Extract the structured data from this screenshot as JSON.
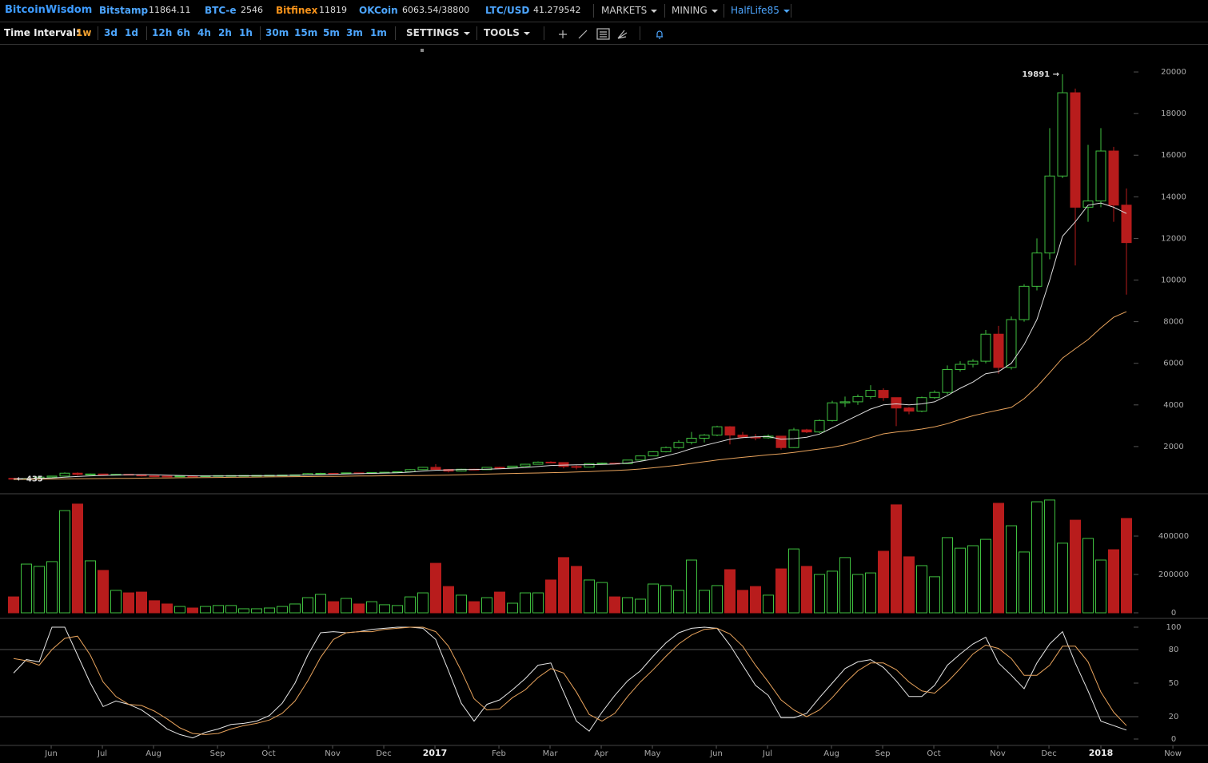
{
  "header": {
    "brand": "BitcoinWisdom",
    "tickers": [
      {
        "name": "Bitstamp",
        "price": "11864.11",
        "color": "#4da6ff"
      },
      {
        "name": "BTC-e",
        "price": "2546",
        "color": "#4da6ff"
      },
      {
        "name": "Bitfinex",
        "price": "11819",
        "color": "#f7931a"
      },
      {
        "name": "OKCoin",
        "price": "6063.54/38800",
        "color": "#4da6ff"
      },
      {
        "name": "LTC/USD",
        "price": "41.279542",
        "color": "#4da6ff"
      }
    ],
    "menus": [
      "MARKETS",
      "MINING",
      "HalfLife85"
    ]
  },
  "toolbar": {
    "label": "Time Interval:",
    "intervals": [
      "1w",
      "3d",
      "1d",
      "12h",
      "6h",
      "4h",
      "2h",
      "1h",
      "30m",
      "15m",
      "5m",
      "3m",
      "1m"
    ],
    "active": 0,
    "menus": [
      "SETTINGS",
      "TOOLS"
    ]
  },
  "chart_data": [
    {
      "type": "candlestick",
      "up_color": "#3fbf3f",
      "down_color": "#b81c1c",
      "xlim": [
        -1.0625,
        93.3125
      ],
      "ylim": [
        0,
        21000
      ],
      "yticks": [
        2000,
        4000,
        6000,
        8000,
        10000,
        12000,
        14000,
        16000,
        18000,
        20000
      ],
      "high_label": "19891 →",
      "low_label": "← 435",
      "open": [
        470,
        450,
        460,
        530,
        580,
        720,
        660,
        680,
        650,
        665,
        650,
        590,
        580,
        570,
        585,
        575,
        595,
        605,
        608,
        612,
        616,
        622,
        630,
        640,
        700,
        712,
        705,
        735,
        725,
        750,
        765,
        790,
        890,
        1000,
        900,
        820,
        910,
        890,
        1000,
        990,
        1060,
        1150,
        1250,
        1230,
        1040,
        1010,
        1180,
        1200,
        1180,
        1350,
        1550,
        1750,
        1950,
        2200,
        2400,
        2550,
        2950,
        2550,
        2450,
        2420,
        2500,
        1950,
        2800,
        2700,
        3250,
        4100,
        4150,
        4400,
        4700,
        4350,
        3850,
        3700,
        4350,
        4600,
        5700,
        5950,
        6100,
        7400,
        5800,
        8100,
        9700,
        11300,
        15000,
        19000,
        13500,
        13800,
        16200,
        13600
      ],
      "high": [
        480,
        470,
        540,
        590,
        760,
        760,
        700,
        690,
        680,
        670,
        660,
        600,
        590,
        595,
        590,
        600,
        612,
        615,
        620,
        625,
        630,
        640,
        650,
        720,
        740,
        720,
        750,
        745,
        760,
        780,
        800,
        910,
        1020,
        1150,
        920,
        930,
        930,
        1010,
        1030,
        1070,
        1170,
        1280,
        1290,
        1250,
        1100,
        1200,
        1230,
        1220,
        1360,
        1570,
        1780,
        2000,
        2300,
        2700,
        2600,
        3000,
        2980,
        2700,
        2600,
        2580,
        2500,
        2900,
        2850,
        3300,
        4200,
        4400,
        4500,
        4950,
        4800,
        4350,
        3900,
        4400,
        4700,
        5900,
        6100,
        6200,
        7600,
        7800,
        8250,
        9800,
        12000,
        17300,
        19891,
        19200,
        16500,
        17300,
        16400,
        14400
      ],
      "low": [
        435,
        440,
        455,
        520,
        570,
        600,
        640,
        630,
        640,
        620,
        560,
        570,
        560,
        565,
        565,
        570,
        590,
        600,
        605,
        608,
        610,
        618,
        625,
        635,
        690,
        690,
        700,
        710,
        720,
        745,
        760,
        785,
        880,
        860,
        760,
        800,
        870,
        880,
        960,
        980,
        1050,
        1140,
        1200,
        950,
        900,
        1000,
        1150,
        1150,
        1170,
        1340,
        1540,
        1720,
        1900,
        2100,
        2200,
        2500,
        2100,
        2400,
        2300,
        2380,
        1850,
        1930,
        2650,
        2650,
        3200,
        3900,
        4000,
        4300,
        4200,
        2980,
        3550,
        3650,
        4300,
        4500,
        5600,
        5800,
        6000,
        5500,
        5700,
        8000,
        9500,
        11000,
        14900,
        10700,
        12800,
        13500,
        12800,
        9300
      ],
      "close": [
        450,
        460,
        530,
        580,
        720,
        660,
        680,
        650,
        665,
        650,
        590,
        580,
        570,
        585,
        575,
        595,
        605,
        608,
        612,
        616,
        622,
        630,
        640,
        700,
        712,
        705,
        735,
        725,
        750,
        765,
        790,
        890,
        1000,
        900,
        820,
        910,
        890,
        1000,
        990,
        1060,
        1150,
        1250,
        1230,
        1040,
        1010,
        1180,
        1200,
        1180,
        1350,
        1550,
        1750,
        1950,
        2200,
        2400,
        2550,
        2950,
        2550,
        2450,
        2420,
        2500,
        1950,
        2800,
        2700,
        3250,
        4100,
        4150,
        4400,
        4700,
        4350,
        3850,
        3700,
        4350,
        4600,
        5700,
        5950,
        6100,
        7400,
        5800,
        8100,
        9700,
        11300,
        15000,
        19000,
        13500,
        13800,
        16200,
        13600,
        11800
      ],
      "ma_series": [
        {
          "color": "#dcdcdc",
          "values": [
            450,
            452,
            470,
            490,
            530,
            560,
            590,
            610,
            630,
            650,
            650,
            640,
            625,
            610,
            595,
            585,
            585,
            590,
            595,
            600,
            605,
            612,
            620,
            635,
            650,
            665,
            680,
            695,
            710,
            725,
            740,
            770,
            820,
            860,
            880,
            890,
            900,
            910,
            930,
            960,
            990,
            1040,
            1090,
            1110,
            1120,
            1130,
            1140,
            1160,
            1210,
            1290,
            1400,
            1550,
            1700,
            1900,
            2050,
            2200,
            2350,
            2430,
            2470,
            2480,
            2350,
            2380,
            2450,
            2600,
            2900,
            3200,
            3500,
            3800,
            4000,
            4050,
            4000,
            4050,
            4150,
            4450,
            4800,
            5100,
            5500,
            5600,
            6000,
            6900,
            8100,
            10000,
            12100,
            12800,
            13600,
            13700,
            13500,
            13200
          ]
        },
        {
          "color": "#e8a35c",
          "values": [
            420,
            426,
            432,
            438,
            444,
            450,
            456,
            462,
            468,
            474,
            480,
            486,
            492,
            498,
            504,
            510,
            516,
            522,
            528,
            534,
            540,
            546,
            552,
            558,
            564,
            570,
            576,
            582,
            588,
            594,
            600,
            606,
            612,
            618,
            630,
            645,
            660,
            675,
            690,
            705,
            718,
            730,
            745,
            760,
            775,
            800,
            825,
            850,
            880,
            920,
            980,
            1040,
            1110,
            1190,
            1270,
            1350,
            1420,
            1480,
            1540,
            1600,
            1650,
            1720,
            1800,
            1880,
            1960,
            2080,
            2250,
            2430,
            2610,
            2700,
            2760,
            2840,
            2950,
            3100,
            3300,
            3480,
            3620,
            3750,
            3880,
            4300,
            4870,
            5550,
            6250,
            6700,
            7140,
            7700,
            8210,
            8480
          ]
        }
      ]
    },
    {
      "type": "bar",
      "up_color": "#3fbf3f",
      "down_color": "#b81c1c",
      "xlim": [
        -1.0625,
        93.3125
      ],
      "ylim": [
        0,
        620000
      ],
      "yticks": [
        0,
        200000,
        400000
      ],
      "values": [
        83000,
        254000,
        242000,
        267000,
        533000,
        567000,
        271000,
        221000,
        117000,
        104000,
        108000,
        63000,
        46000,
        33000,
        25000,
        33000,
        38000,
        38000,
        21000,
        21000,
        25000,
        33000,
        46000,
        79000,
        96000,
        58000,
        75000,
        46000,
        58000,
        42000,
        38000,
        83000,
        104000,
        258000,
        137000,
        92000,
        58000,
        79000,
        108000,
        50000,
        104000,
        104000,
        171000,
        288000,
        242000,
        171000,
        158000,
        83000,
        79000,
        71000,
        150000,
        142000,
        117000,
        275000,
        117000,
        142000,
        225000,
        117000,
        137000,
        92000,
        229000,
        333000,
        242000,
        200000,
        217000,
        288000,
        200000,
        208000,
        321000,
        563000,
        292000,
        246000,
        188000,
        392000,
        337000,
        350000,
        383000,
        571000,
        454000,
        317000,
        579000,
        588000,
        363000,
        483000,
        388000,
        275000,
        329000,
        492000
      ]
    },
    {
      "type": "line",
      "xlim": [
        -1.0625,
        93.3125
      ],
      "ylim": [
        0,
        100
      ],
      "yticks": [
        0,
        20,
        50,
        80,
        100
      ],
      "grid_levels": [
        20,
        80
      ],
      "xticks": [
        {
          "value": 2.94,
          "label": "Jun"
        },
        {
          "value": 6.94,
          "label": "Jul"
        },
        {
          "value": 10.94,
          "label": "Aug"
        },
        {
          "value": 15.94,
          "label": "Sep"
        },
        {
          "value": 19.94,
          "label": "Oct"
        },
        {
          "value": 24.94,
          "label": "Nov"
        },
        {
          "value": 28.94,
          "label": "Dec"
        },
        {
          "value": 32.94,
          "label": "2017"
        },
        {
          "value": 37.94,
          "label": "Feb"
        },
        {
          "value": 41.94,
          "label": "Mar"
        },
        {
          "value": 45.94,
          "label": "Apr"
        },
        {
          "value": 49.94,
          "label": "May"
        },
        {
          "value": 54.94,
          "label": "Jun"
        },
        {
          "value": 58.94,
          "label": "Jul"
        },
        {
          "value": 63.94,
          "label": "Aug"
        },
        {
          "value": 67.94,
          "label": "Sep"
        },
        {
          "value": 71.94,
          "label": "Oct"
        },
        {
          "value": 76.94,
          "label": "Nov"
        },
        {
          "value": 80.94,
          "label": "Dec"
        },
        {
          "value": 85,
          "label": "2018"
        },
        {
          "value": 90.63,
          "label": "Now"
        }
      ],
      "series": [
        {
          "color": "#e6e6e6",
          "values": [
            59,
            71,
            69,
            100,
            100,
            75,
            50,
            29,
            34,
            31,
            26,
            18,
            9,
            4,
            1,
            6,
            9,
            13,
            14,
            16,
            21,
            32,
            50,
            75,
            95,
            96,
            95,
            96,
            98,
            99,
            100,
            100,
            99,
            89,
            61,
            32,
            16,
            31,
            35,
            44,
            54,
            66,
            68,
            42,
            16,
            7,
            24,
            39,
            52,
            61,
            74,
            86,
            95,
            99,
            100,
            99,
            84,
            66,
            48,
            39,
            19,
            19,
            23,
            37,
            50,
            63,
            69,
            71,
            64,
            52,
            38,
            38,
            48,
            66,
            76,
            85,
            91,
            68,
            57,
            45,
            68,
            85,
            96,
            68,
            43,
            16,
            12,
            8
          ]
        },
        {
          "color": "#e8a35c",
          "values": [
            72,
            70,
            66,
            80,
            90,
            92,
            75,
            51,
            38,
            31,
            30,
            25,
            18,
            10,
            5,
            4,
            5,
            9,
            12,
            14,
            17,
            23,
            34,
            52,
            73,
            89,
            95,
            96,
            96,
            98,
            99,
            100,
            100,
            96,
            83,
            61,
            36,
            26,
            27,
            37,
            44,
            55,
            63,
            59,
            42,
            22,
            16,
            23,
            38,
            51,
            62,
            74,
            85,
            93,
            98,
            99,
            94,
            83,
            66,
            51,
            35,
            26,
            20,
            26,
            37,
            50,
            61,
            68,
            68,
            62,
            51,
            43,
            41,
            51,
            63,
            76,
            84,
            81,
            72,
            57,
            57,
            66,
            83,
            83,
            69,
            42,
            24,
            12
          ]
        }
      ]
    }
  ]
}
